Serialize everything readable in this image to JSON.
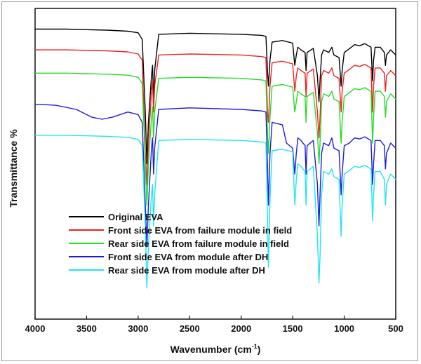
{
  "chart_data": {
    "type": "line",
    "xlabel": "Wavenumber (cm",
    "xlabel_sup": "-1",
    "xlabel_tail": ")",
    "ylabel": "Transmittance %",
    "xlim": [
      4000,
      500
    ],
    "x_reversed": true,
    "x_ticks": [
      "4000",
      "3500",
      "3000",
      "2500",
      "2000",
      "1500",
      "1000",
      "500"
    ],
    "y_ticks": [],
    "grid": false,
    "legend_position": "center-left",
    "series": [
      {
        "name": "Original EVA",
        "color": "#000000",
        "x": [
          4000,
          3700,
          3500,
          3300,
          3100,
          3000,
          2960,
          2930,
          2915,
          2900,
          2870,
          2860,
          2850,
          2840,
          2800,
          2500,
          2000,
          1800,
          1760,
          1745,
          1735,
          1720,
          1700,
          1600,
          1500,
          1480,
          1465,
          1450,
          1420,
          1380,
          1370,
          1360,
          1300,
          1260,
          1245,
          1235,
          1220,
          1200,
          1150,
          1120,
          1100,
          1050,
          1030,
          1020,
          1000,
          950,
          900,
          850,
          800,
          740,
          725,
          715,
          700,
          650,
          610,
          600,
          590,
          550,
          500
        ],
        "y": [
          96,
          96,
          95.9,
          95.8,
          95.6,
          95.3,
          94,
          80,
          70,
          78,
          87,
          89,
          82,
          88,
          95,
          95.2,
          95,
          94.8,
          94.6,
          88,
          85,
          90,
          93.5,
          93.8,
          93.3,
          89,
          91,
          92.5,
          92,
          91.5,
          88,
          91.5,
          92.3,
          87,
          82,
          86,
          91,
          92,
          91.5,
          92.5,
          91,
          90.5,
          85,
          88,
          91.5,
          92.2,
          93,
          92.8,
          93.2,
          92.5,
          86,
          90,
          92.5,
          92.5,
          91.5,
          89,
          91,
          92,
          91
        ]
      },
      {
        "name": "Front side EVA from failure module in field",
        "color": "#ee2020",
        "x": [
          4000,
          3700,
          3500,
          3300,
          3100,
          3000,
          2960,
          2930,
          2915,
          2900,
          2870,
          2860,
          2850,
          2840,
          2800,
          2500,
          2000,
          1800,
          1760,
          1745,
          1735,
          1720,
          1700,
          1600,
          1500,
          1480,
          1465,
          1450,
          1420,
          1380,
          1370,
          1360,
          1300,
          1260,
          1245,
          1235,
          1220,
          1200,
          1150,
          1120,
          1100,
          1050,
          1030,
          1020,
          1000,
          950,
          900,
          850,
          800,
          740,
          725,
          715,
          700,
          650,
          610,
          600,
          590,
          550,
          500
        ],
        "y": [
          92,
          92,
          91.9,
          91.8,
          91.6,
          91.2,
          90,
          72,
          66,
          74,
          84,
          86,
          80,
          85,
          91,
          91.2,
          91,
          90.7,
          90.5,
          80,
          78,
          85,
          89.5,
          89.8,
          89.3,
          84,
          87,
          88.5,
          88,
          87.5,
          83,
          87.5,
          88.3,
          80,
          75,
          79,
          87,
          88,
          87.5,
          88.5,
          87,
          86.5,
          80,
          84,
          87.5,
          88.2,
          89,
          88.8,
          89.2,
          88.5,
          80,
          85,
          88.5,
          88.5,
          87.5,
          84,
          87,
          88,
          87
        ]
      },
      {
        "name": "Rear side EVA from failure module in field",
        "color": "#22dd22",
        "x": [
          4000,
          3700,
          3500,
          3300,
          3100,
          3000,
          2960,
          2930,
          2915,
          2900,
          2870,
          2860,
          2850,
          2840,
          2800,
          2500,
          2000,
          1800,
          1760,
          1745,
          1735,
          1720,
          1700,
          1600,
          1500,
          1480,
          1465,
          1450,
          1420,
          1380,
          1370,
          1360,
          1300,
          1260,
          1245,
          1235,
          1220,
          1200,
          1150,
          1120,
          1100,
          1050,
          1030,
          1020,
          1000,
          950,
          900,
          850,
          800,
          740,
          725,
          715,
          700,
          650,
          610,
          600,
          590,
          550,
          500
        ],
        "y": [
          87.5,
          87.5,
          87.4,
          87.3,
          87.1,
          86.7,
          85.5,
          70,
          62,
          70,
          79,
          81,
          75,
          80,
          86.5,
          86.7,
          86.5,
          86.2,
          86,
          76,
          72,
          79,
          85,
          85.3,
          84.8,
          80,
          82,
          84,
          83.5,
          83,
          78,
          83,
          83.8,
          76,
          70,
          74,
          82,
          83.5,
          83,
          84,
          82.5,
          82,
          74,
          78,
          83,
          83.7,
          84.5,
          84.3,
          84.7,
          84,
          74,
          79,
          84,
          84,
          83,
          79,
          82,
          83.5,
          82.5
        ]
      },
      {
        "name": "Front side EVA from module after DH",
        "color": "#1c1cdd",
        "x": [
          4000,
          3800,
          3600,
          3450,
          3350,
          3250,
          3100,
          3000,
          2960,
          2930,
          2915,
          2900,
          2870,
          2860,
          2850,
          2840,
          2800,
          2500,
          2000,
          1800,
          1760,
          1745,
          1735,
          1720,
          1700,
          1600,
          1560,
          1500,
          1480,
          1465,
          1450,
          1420,
          1380,
          1370,
          1360,
          1300,
          1260,
          1245,
          1235,
          1220,
          1200,
          1150,
          1120,
          1100,
          1050,
          1030,
          1020,
          1000,
          950,
          900,
          850,
          800,
          740,
          725,
          715,
          700,
          650,
          610,
          600,
          590,
          550,
          500
        ],
        "y": [
          81.5,
          81.3,
          80.5,
          79,
          78.6,
          79,
          80,
          79.5,
          78,
          62,
          54,
          62,
          73,
          75,
          68,
          73,
          80.5,
          80.8,
          80.5,
          80.2,
          80,
          70,
          62,
          72,
          78,
          77.5,
          74,
          73,
          68,
          72,
          75,
          74.5,
          73.5,
          68,
          73.5,
          74.5,
          66,
          58,
          64,
          72,
          74,
          73.5,
          75,
          73,
          72.5,
          64,
          68,
          73.5,
          74,
          75,
          74.8,
          75.2,
          74.5,
          66,
          70,
          74.5,
          74.5,
          73.5,
          69,
          72,
          74,
          73
        ]
      },
      {
        "name": "Rear side EVA from module after DH",
        "color": "#22e5ee",
        "x": [
          4000,
          3700,
          3500,
          3300,
          3100,
          3000,
          2960,
          2930,
          2915,
          2900,
          2870,
          2860,
          2850,
          2840,
          2800,
          2500,
          2000,
          1800,
          1760,
          1745,
          1735,
          1720,
          1700,
          1600,
          1500,
          1480,
          1465,
          1450,
          1420,
          1380,
          1370,
          1360,
          1300,
          1260,
          1245,
          1235,
          1220,
          1200,
          1150,
          1120,
          1100,
          1050,
          1030,
          1020,
          1000,
          950,
          900,
          850,
          800,
          740,
          725,
          715,
          700,
          650,
          610,
          600,
          590,
          550,
          500
        ],
        "y": [
          75.5,
          75.5,
          75.4,
          75.3,
          75.1,
          74.7,
          73.5,
          58,
          46,
          54,
          64,
          66,
          58,
          64,
          74.5,
          74.7,
          74.5,
          74.2,
          74,
          60,
          50,
          63,
          72.5,
          72.8,
          72.3,
          62,
          67,
          70,
          69.5,
          68.5,
          62,
          68.5,
          69.5,
          56,
          47,
          52,
          64,
          68.5,
          68,
          69,
          67.5,
          67,
          56,
          62,
          68,
          68.7,
          69.5,
          69.3,
          69.7,
          69,
          59,
          64,
          68.5,
          68.5,
          67,
          62,
          66,
          68,
          67
        ]
      }
    ]
  }
}
